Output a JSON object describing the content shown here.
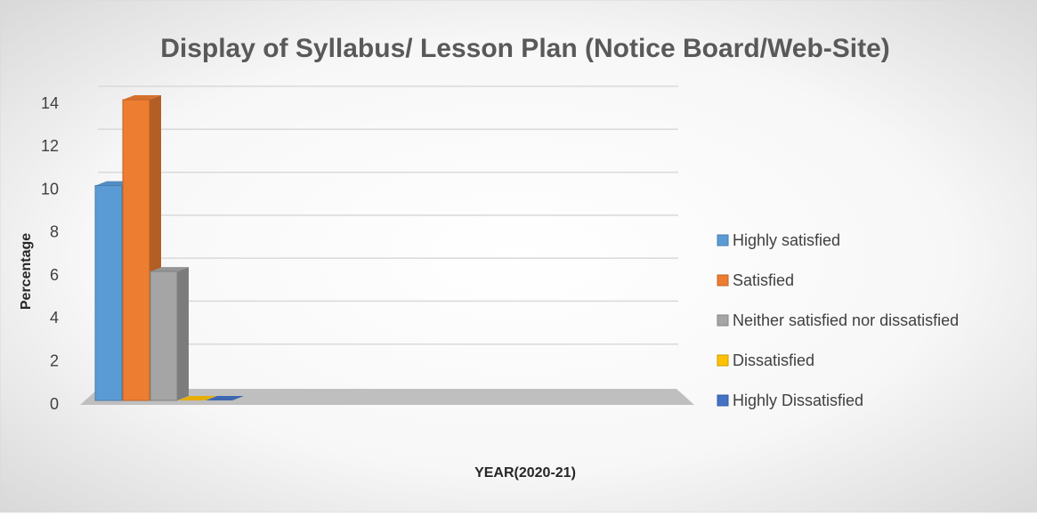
{
  "chart_data": {
    "type": "bar3d",
    "title": "Display of Syllabus/ Lesson Plan (Notice Board/Web-Site)",
    "xlabel": "YEAR(2020-21)",
    "ylabel": "Percentage",
    "categories": [
      null
    ],
    "series": [
      {
        "name": "Highly satisfied",
        "color": "#5b9bd5",
        "values": [
          10
        ]
      },
      {
        "name": "Satisfied",
        "color": "#ed7d31",
        "values": [
          14
        ]
      },
      {
        "name": "Neither satisfied nor dissatisfied",
        "color": "#a5a5a5",
        "values": [
          6
        ]
      },
      {
        "name": "Dissatisfied",
        "color": "#ffc000",
        "values": [
          0
        ]
      },
      {
        "name": "Highly Dissatisfied",
        "color": "#4472c4",
        "values": [
          0
        ]
      }
    ],
    "ylim": [
      0,
      14
    ],
    "yticks": [
      0,
      2,
      4,
      6,
      8,
      10,
      12,
      14
    ],
    "grid": true,
    "legend": "right"
  }
}
